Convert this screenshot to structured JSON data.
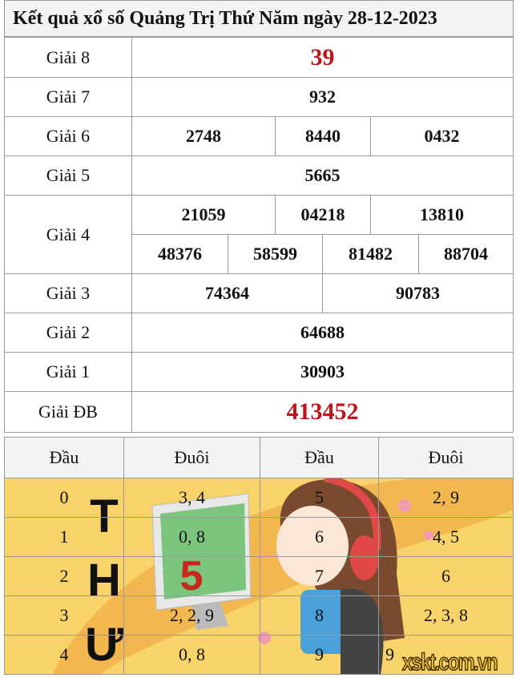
{
  "title": "Kết quả xổ số Quảng Trị Thứ Năm ngày 28-12-2023",
  "prizes": {
    "g8": {
      "label": "Giải 8",
      "values": [
        "39"
      ]
    },
    "g7": {
      "label": "Giải 7",
      "values": [
        "932"
      ]
    },
    "g6": {
      "label": "Giải 6",
      "values": [
        "2748",
        "8440",
        "0432"
      ]
    },
    "g5": {
      "label": "Giải 5",
      "values": [
        "5665"
      ]
    },
    "g4": {
      "label": "Giải 4",
      "values": [
        "21059",
        "04218",
        "13810",
        "48376",
        "58599",
        "81482",
        "88704"
      ]
    },
    "g3": {
      "label": "Giải 3",
      "values": [
        "74364",
        "90783"
      ]
    },
    "g2": {
      "label": "Giải 2",
      "values": [
        "64688"
      ]
    },
    "g1": {
      "label": "Giải 1",
      "values": [
        "30903"
      ]
    },
    "db": {
      "label": "Giải ĐB",
      "values": [
        "413452"
      ]
    }
  },
  "loto": {
    "headers": [
      "Đầu",
      "Đuôi",
      "Đầu",
      "Đuôi"
    ],
    "rows": [
      [
        "0",
        "3, 4",
        "5",
        "2, 9"
      ],
      [
        "1",
        "0, 8",
        "6",
        "4, 5"
      ],
      [
        "2",
        "",
        "7",
        "6"
      ],
      [
        "3",
        "2, 2, 9",
        "8",
        "2, 3, 8"
      ],
      [
        "4",
        "0, 8",
        "9",
        "9"
      ]
    ],
    "banner_text": "THỨ",
    "banner_number": "5"
  },
  "watermark": "xskt.com.vn",
  "colors": {
    "accent_red": "#c0141c",
    "banner_yellow": "#f8d36a"
  }
}
